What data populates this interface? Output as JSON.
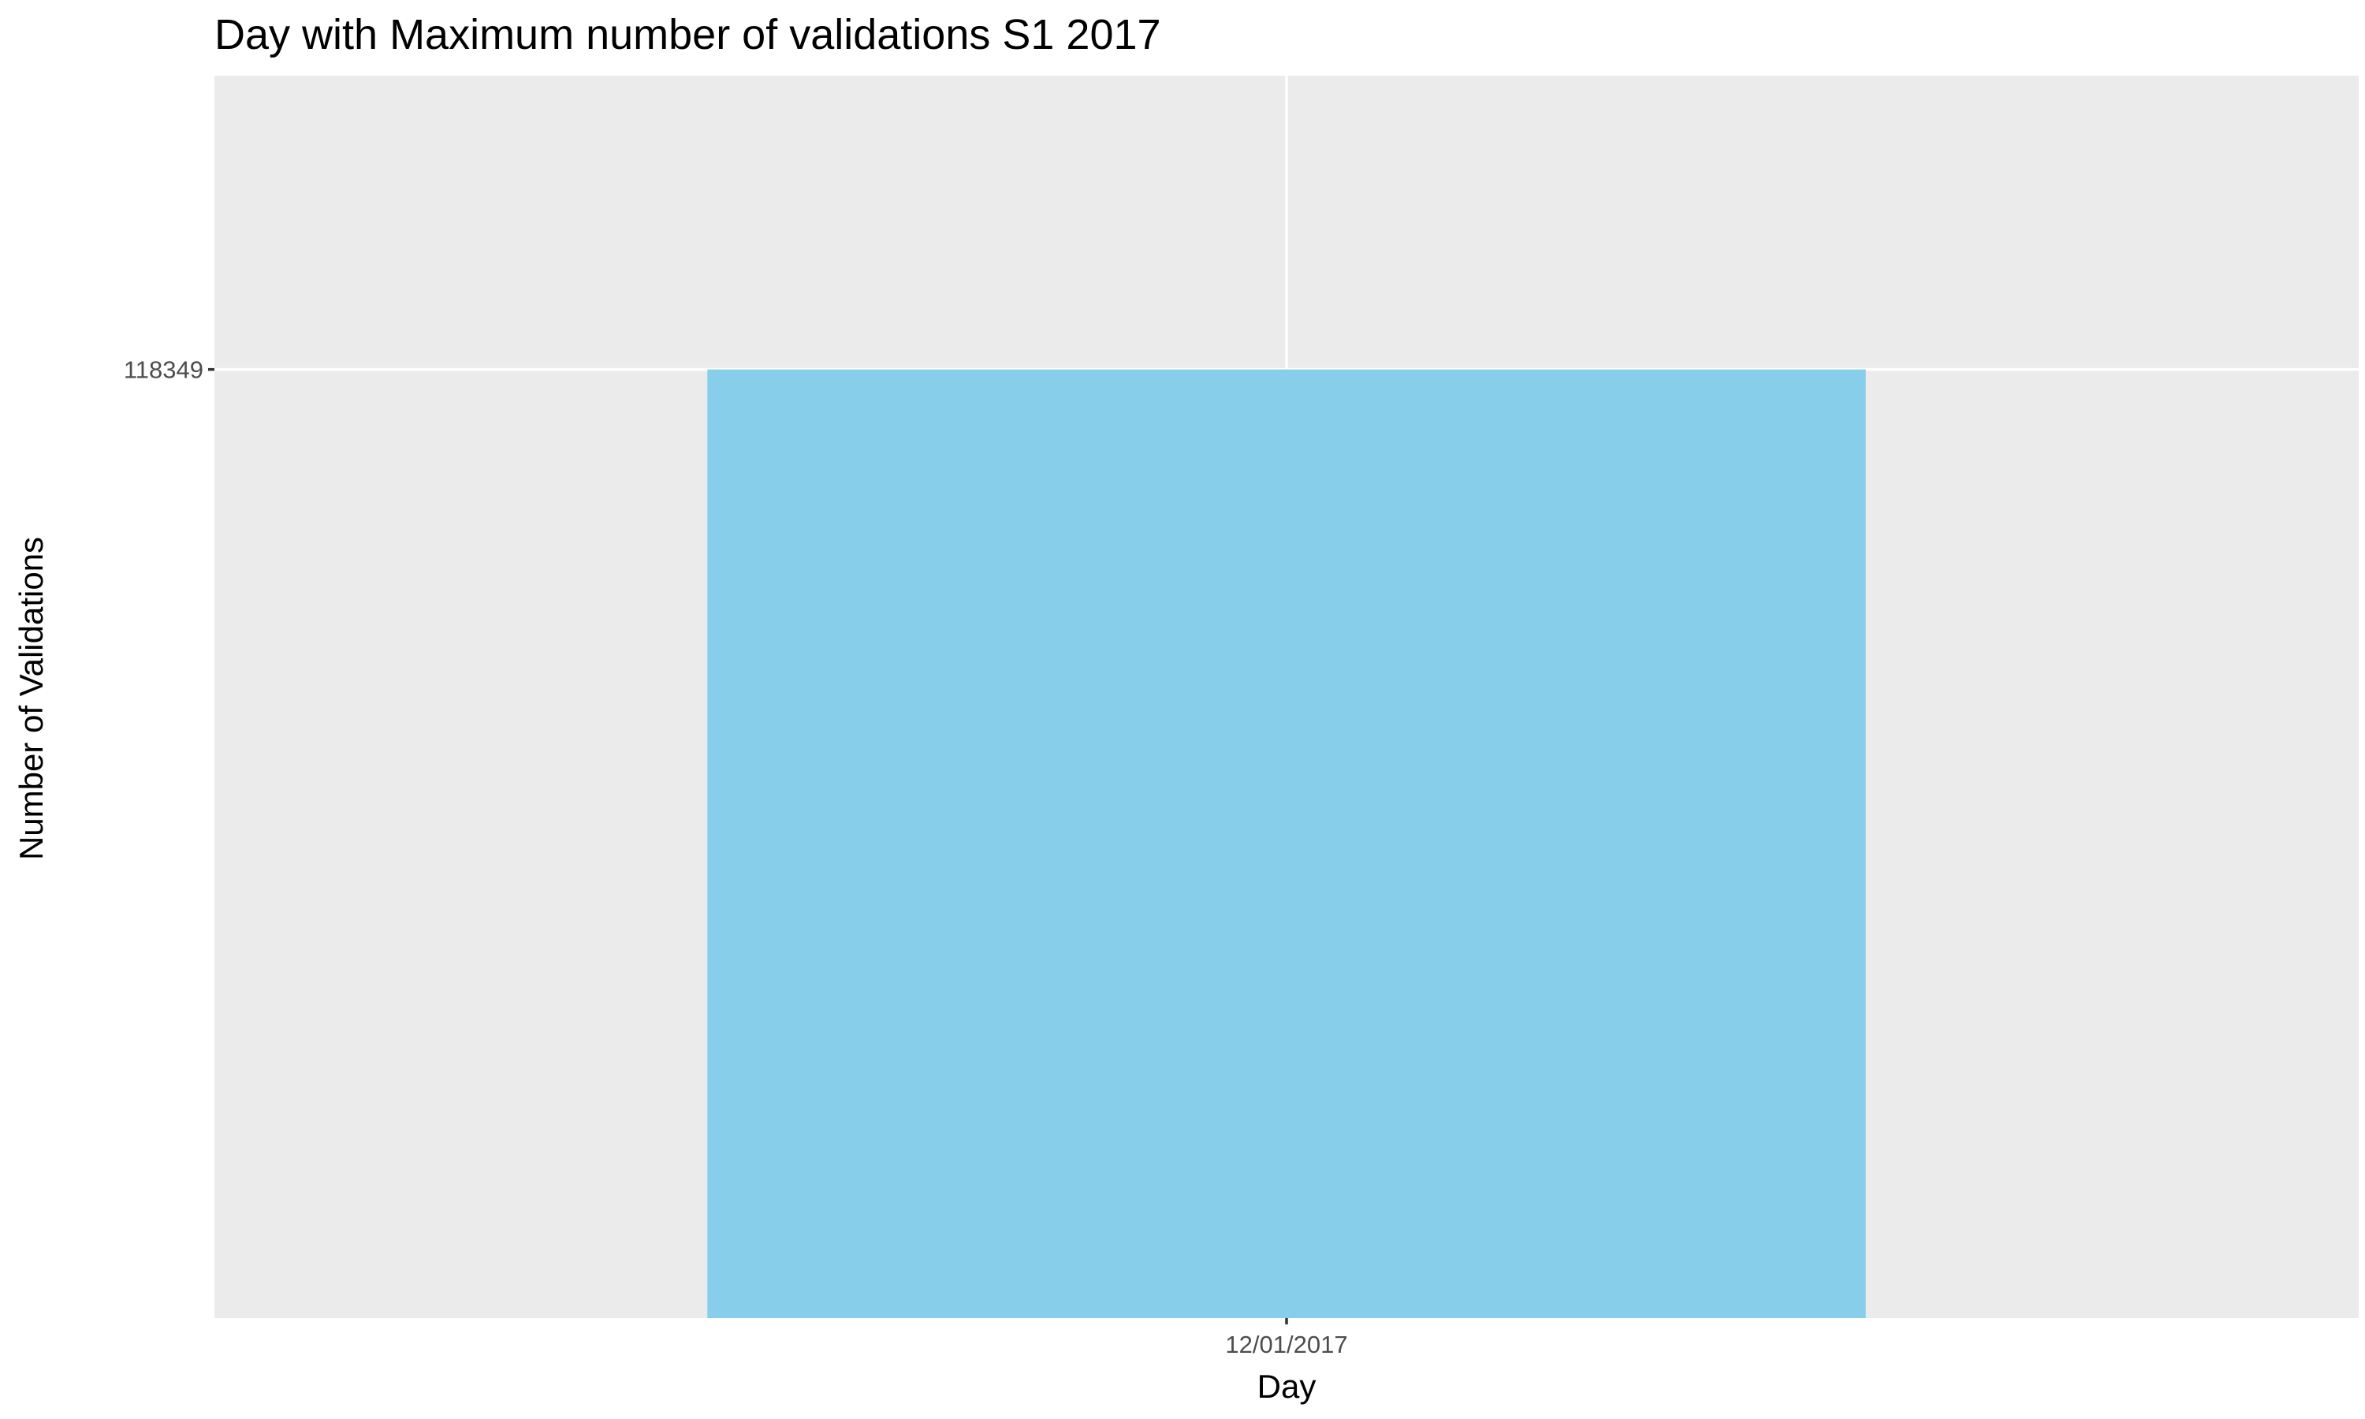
{
  "chart_data": {
    "type": "bar",
    "title": "Day with Maximum number of validations S1 2017",
    "xlabel": "Day",
    "ylabel": "Number of Validations",
    "categories": [
      "12/01/2017"
    ],
    "values": [
      118349
    ],
    "ylim": [
      0,
      155000
    ],
    "y_ticks": [
      118349
    ],
    "y_tick_labels": [
      "118349"
    ],
    "grid": true,
    "legend": "none",
    "colors": {
      "bar": "#87CEEB",
      "panel_background": "#EBEBEB",
      "grid": "#FFFFFF",
      "tick": "#333333",
      "tick_text": "#4D4D4D",
      "text": "#000000"
    }
  }
}
